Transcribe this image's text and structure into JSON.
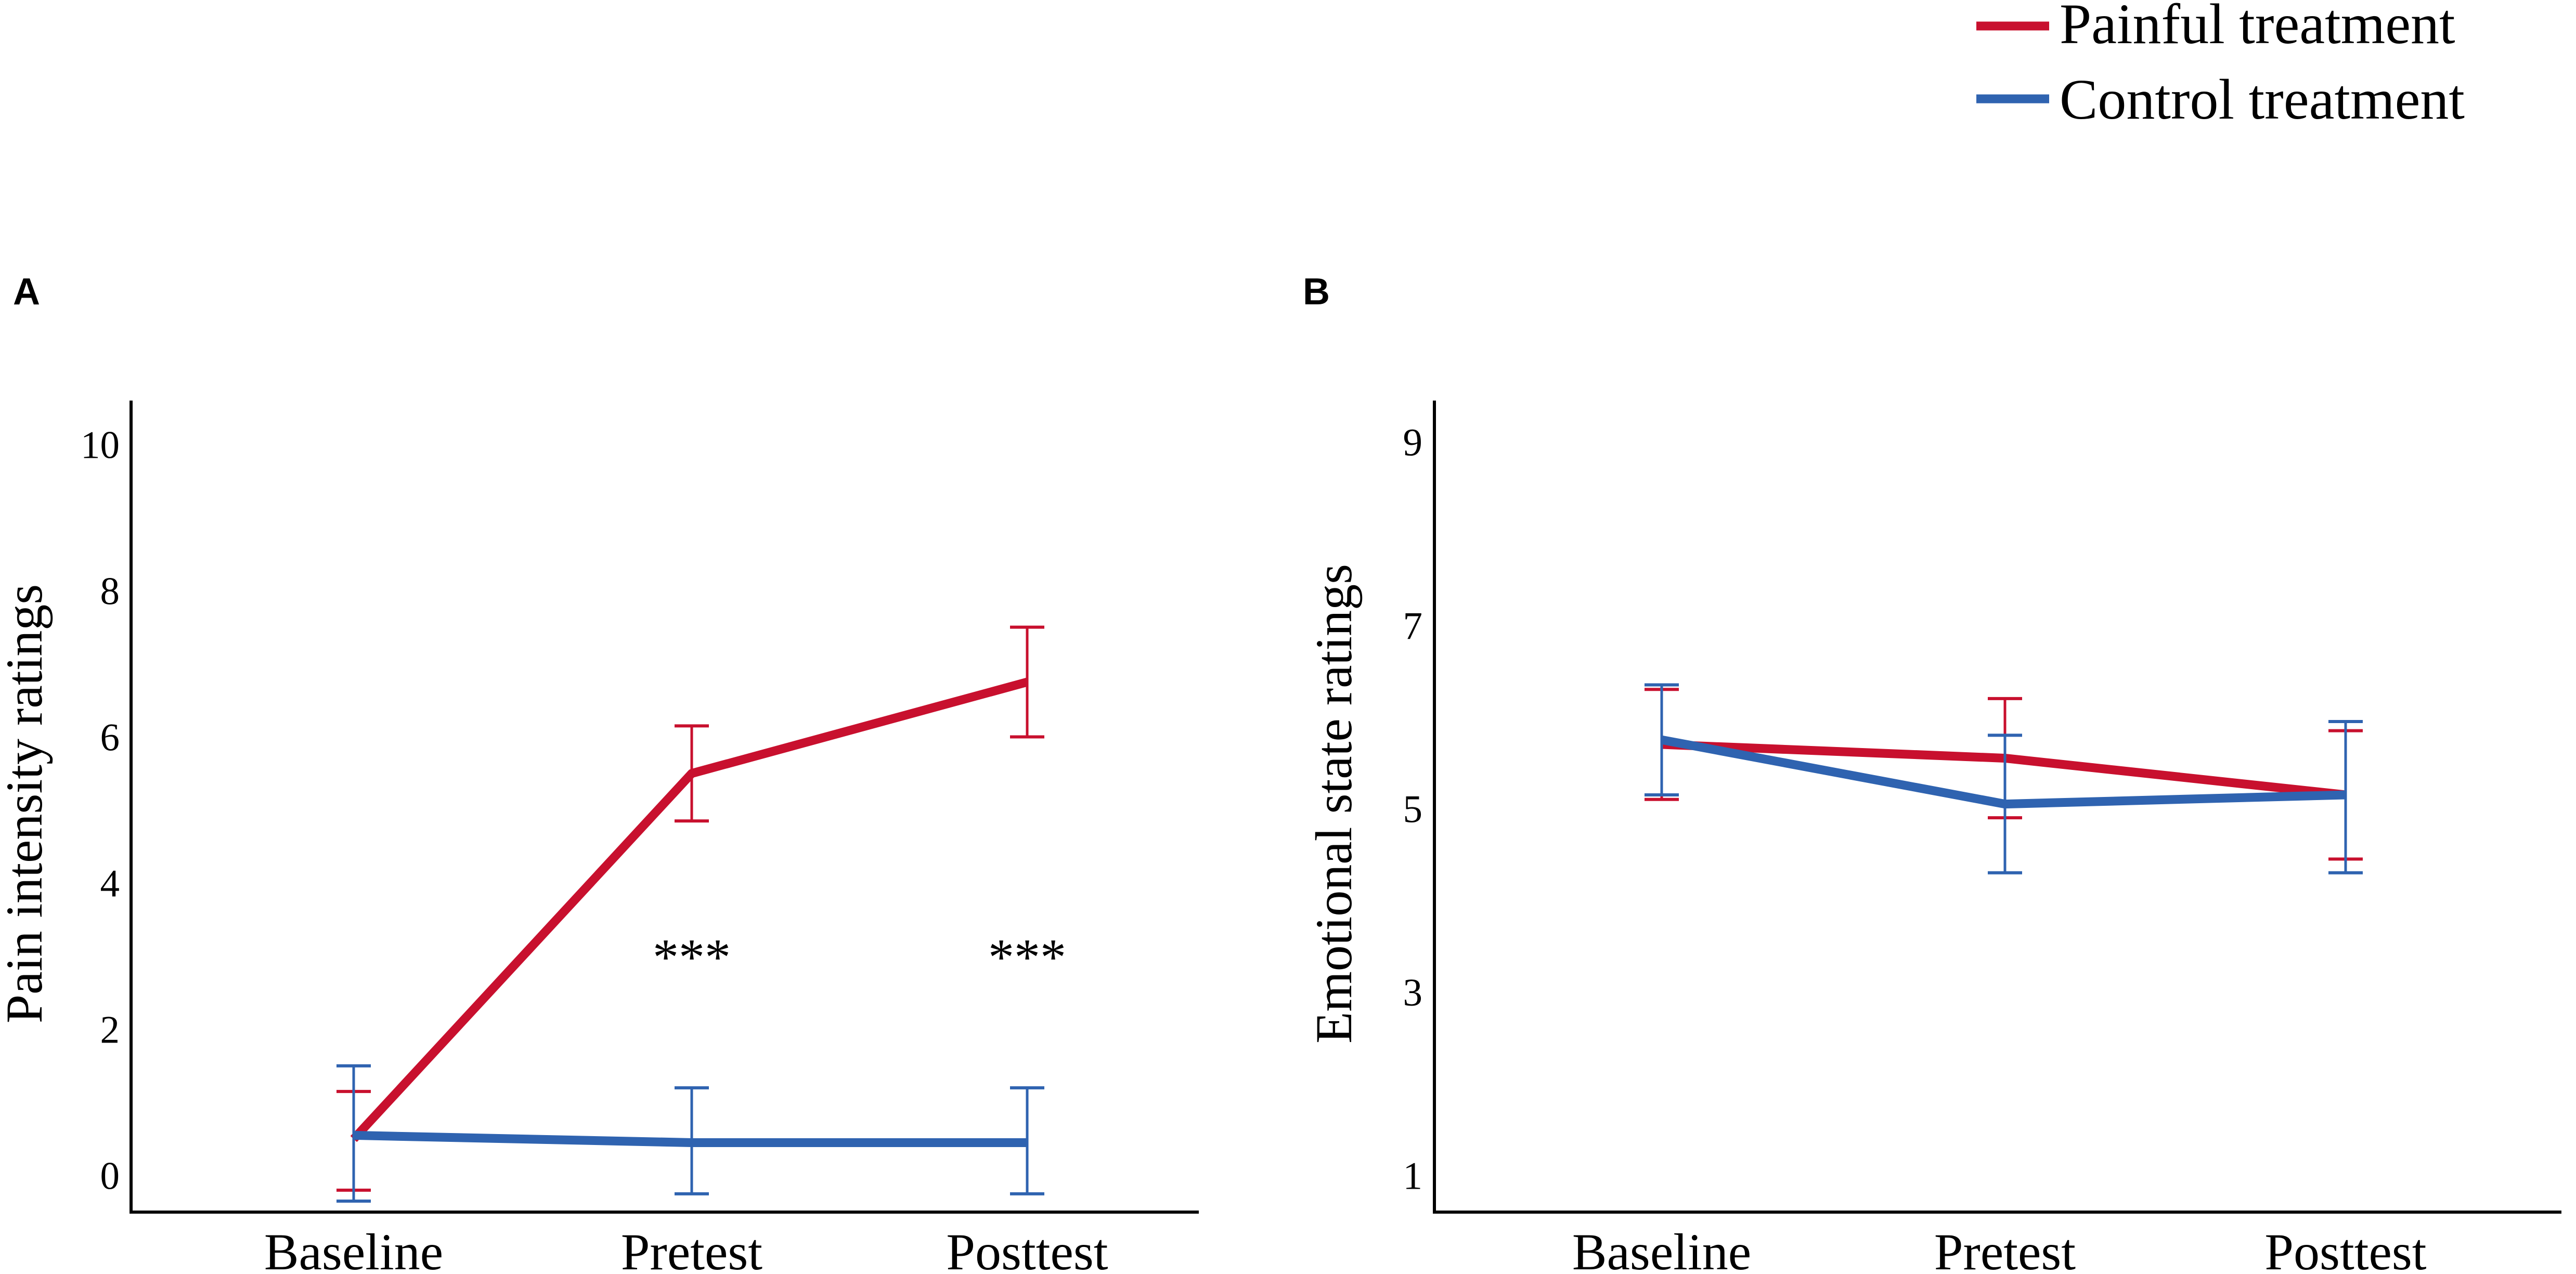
{
  "legend": {
    "items": [
      {
        "label": "Painful treatment",
        "color": "#c8102e"
      },
      {
        "label": "Control treatment",
        "color": "#2f63b0"
      }
    ]
  },
  "chart_data": [
    {
      "panel": "A",
      "type": "line",
      "categories": [
        "Baseline",
        "Pretest",
        "Posttest"
      ],
      "ylabel": "Pain intensity ratings",
      "yticks": [
        "0",
        "2",
        "4",
        "6",
        "8",
        "10"
      ],
      "ylim": [
        -0.5,
        10.6
      ],
      "series": [
        {
          "name": "Painful treatment",
          "color": "#c8102e",
          "values": [
            0.5,
            5.5,
            6.75
          ],
          "err_low": [
            -0.2,
            4.85,
            6.0
          ],
          "err_high": [
            1.15,
            6.15,
            7.5
          ]
        },
        {
          "name": "Control treatment",
          "color": "#2f63b0",
          "values": [
            0.55,
            0.45,
            0.45
          ],
          "err_low": [
            -0.35,
            -0.25,
            -0.25
          ],
          "err_high": [
            1.5,
            1.2,
            1.2
          ]
        }
      ],
      "annotations": [
        {
          "category": "Pretest",
          "y": 3.0,
          "text": "***"
        },
        {
          "category": "Posttest",
          "y": 3.0,
          "text": "***"
        }
      ]
    },
    {
      "panel": "B",
      "type": "line",
      "categories": [
        "Baseline",
        "Pretest",
        "Posttest"
      ],
      "ylabel": "Emotional state ratings",
      "yticks": [
        "1",
        "3",
        "5",
        "7",
        "9"
      ],
      "ylim": [
        0.6,
        9.45
      ],
      "series": [
        {
          "name": "Painful treatment",
          "color": "#c8102e",
          "values": [
            5.7,
            5.55,
            5.15
          ],
          "err_low": [
            5.1,
            4.9,
            4.45
          ],
          "err_high": [
            6.3,
            6.2,
            5.85
          ]
        },
        {
          "name": "Control treatment",
          "color": "#2f63b0",
          "values": [
            5.75,
            5.05,
            5.15
          ],
          "err_low": [
            5.15,
            4.3,
            4.3
          ],
          "err_high": [
            6.35,
            5.8,
            5.95
          ]
        }
      ],
      "annotations": []
    }
  ]
}
